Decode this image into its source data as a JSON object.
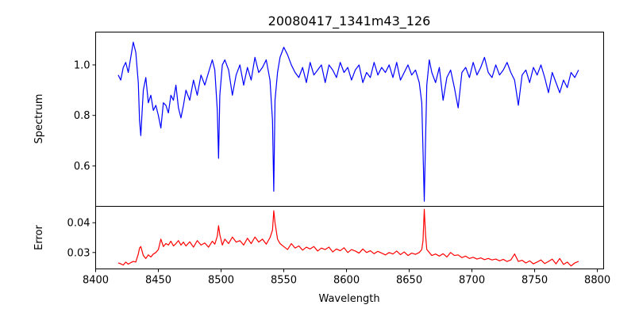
{
  "chart_data": [
    {
      "type": "line",
      "title": "20080417_1341m43_126",
      "ylabel": "Spectrum",
      "xlabel": "",
      "xlim": [
        8400,
        8805
      ],
      "ylim": [
        0.44,
        1.13
      ],
      "yticks": [
        0.6,
        0.8,
        1.0
      ],
      "ytick_labels": [
        "0.6",
        "0.8",
        "1.0"
      ],
      "grid": false,
      "series": [
        {
          "color": "#0000ff",
          "x": [
            8418,
            8420,
            8422,
            8424,
            8426,
            8428,
            8430,
            8432,
            8434,
            8435,
            8436,
            8438,
            8440,
            8442,
            8444,
            8446,
            8448,
            8450,
            8452,
            8454,
            8456,
            8458,
            8460,
            8462,
            8464,
            8466,
            8468,
            8470,
            8472,
            8475,
            8478,
            8481,
            8484,
            8487,
            8490,
            8493,
            8495,
            8497,
            8498,
            8499,
            8501,
            8503,
            8506,
            8509,
            8512,
            8515,
            8518,
            8521,
            8524,
            8527,
            8530,
            8533,
            8536,
            8539,
            8541,
            8542,
            8543,
            8545,
            8547,
            8550,
            8553,
            8556,
            8559,
            8562,
            8565,
            8568,
            8571,
            8574,
            8577,
            8580,
            8583,
            8586,
            8589,
            8592,
            8595,
            8598,
            8601,
            8604,
            8607,
            8610,
            8613,
            8616,
            8619,
            8622,
            8625,
            8628,
            8631,
            8634,
            8637,
            8640,
            8643,
            8646,
            8649,
            8652,
            8655,
            8658,
            8660,
            8661,
            8662,
            8663,
            8664,
            8666,
            8668,
            8671,
            8674,
            8677,
            8680,
            8683,
            8686,
            8689,
            8692,
            8695,
            8698,
            8701,
            8704,
            8707,
            8710,
            8713,
            8716,
            8719,
            8722,
            8725,
            8728,
            8731,
            8734,
            8737,
            8740,
            8743,
            8746,
            8749,
            8752,
            8755,
            8758,
            8761,
            8764,
            8767,
            8770,
            8773,
            8776,
            8779,
            8782,
            8785
          ],
          "y": [
            0.96,
            0.94,
            0.99,
            1.01,
            0.97,
            1.03,
            1.09,
            1.05,
            0.93,
            0.78,
            0.72,
            0.9,
            0.95,
            0.85,
            0.88,
            0.82,
            0.84,
            0.8,
            0.75,
            0.85,
            0.84,
            0.81,
            0.88,
            0.86,
            0.92,
            0.83,
            0.79,
            0.84,
            0.9,
            0.86,
            0.94,
            0.88,
            0.96,
            0.92,
            0.97,
            1.02,
            0.98,
            0.82,
            0.63,
            0.88,
            1.0,
            1.02,
            0.98,
            0.88,
            0.96,
            1.0,
            0.92,
            0.99,
            0.94,
            1.03,
            0.97,
            0.99,
            1.02,
            0.94,
            0.78,
            0.5,
            0.86,
            0.97,
            1.03,
            1.07,
            1.04,
            1.0,
            0.97,
            0.95,
            0.99,
            0.93,
            1.01,
            0.96,
            0.98,
            1.0,
            0.93,
            1.0,
            0.98,
            0.95,
            1.01,
            0.97,
            0.99,
            0.94,
            0.98,
            1.0,
            0.93,
            0.97,
            0.95,
            1.01,
            0.96,
            0.99,
            0.97,
            1.0,
            0.95,
            1.01,
            0.94,
            0.97,
            1.0,
            0.96,
            0.98,
            0.93,
            0.85,
            0.66,
            0.46,
            0.7,
            0.92,
            1.02,
            0.97,
            0.93,
            0.99,
            0.86,
            0.95,
            0.98,
            0.91,
            0.83,
            0.97,
            0.99,
            0.95,
            1.01,
            0.96,
            0.99,
            1.03,
            0.97,
            0.95,
            1.0,
            0.96,
            0.98,
            1.01,
            0.97,
            0.94,
            0.84,
            0.96,
            0.98,
            0.93,
            0.99,
            0.96,
            1.0,
            0.95,
            0.89,
            0.97,
            0.93,
            0.89,
            0.94,
            0.91,
            0.97,
            0.95,
            0.98
          ]
        }
      ]
    },
    {
      "type": "line",
      "title": "",
      "ylabel": "Error",
      "xlabel": "Wavelength",
      "xlim": [
        8400,
        8805
      ],
      "ylim": [
        0.0245,
        0.0455
      ],
      "yticks": [
        0.03,
        0.04
      ],
      "ytick_labels": [
        "0.03",
        "0.04"
      ],
      "xticks": [
        8400,
        8450,
        8500,
        8550,
        8600,
        8650,
        8700,
        8750,
        8800
      ],
      "xtick_labels": [
        "8400",
        "8450",
        "8500",
        "8550",
        "8600",
        "8650",
        "8700",
        "8750",
        "8800"
      ],
      "grid": false,
      "series": [
        {
          "color": "#ff0000",
          "x": [
            8418,
            8420,
            8422,
            8424,
            8426,
            8428,
            8430,
            8432,
            8434,
            8435,
            8436,
            8438,
            8440,
            8442,
            8444,
            8446,
            8448,
            8450,
            8452,
            8454,
            8456,
            8458,
            8460,
            8462,
            8464,
            8466,
            8468,
            8470,
            8472,
            8475,
            8478,
            8481,
            8484,
            8487,
            8490,
            8493,
            8495,
            8497,
            8498,
            8499,
            8501,
            8503,
            8506,
            8509,
            8512,
            8515,
            8518,
            8521,
            8524,
            8527,
            8530,
            8533,
            8536,
            8539,
            8541,
            8542,
            8543,
            8545,
            8547,
            8550,
            8553,
            8556,
            8559,
            8562,
            8565,
            8568,
            8571,
            8574,
            8577,
            8580,
            8583,
            8586,
            8589,
            8592,
            8595,
            8598,
            8601,
            8604,
            8607,
            8610,
            8613,
            8616,
            8619,
            8622,
            8625,
            8628,
            8631,
            8634,
            8637,
            8640,
            8643,
            8646,
            8649,
            8652,
            8655,
            8658,
            8660,
            8661,
            8662,
            8663,
            8664,
            8666,
            8668,
            8671,
            8674,
            8677,
            8680,
            8683,
            8686,
            8689,
            8692,
            8695,
            8698,
            8701,
            8704,
            8707,
            8710,
            8713,
            8716,
            8719,
            8722,
            8725,
            8728,
            8731,
            8734,
            8737,
            8740,
            8743,
            8746,
            8749,
            8752,
            8755,
            8758,
            8761,
            8764,
            8767,
            8770,
            8773,
            8776,
            8779,
            8782,
            8785
          ],
          "y": [
            0.0265,
            0.0262,
            0.0258,
            0.0268,
            0.0261,
            0.0266,
            0.027,
            0.0268,
            0.0295,
            0.0315,
            0.032,
            0.029,
            0.028,
            0.0292,
            0.0285,
            0.0295,
            0.03,
            0.031,
            0.0345,
            0.032,
            0.033,
            0.0325,
            0.0338,
            0.0322,
            0.033,
            0.034,
            0.0325,
            0.0335,
            0.0322,
            0.0336,
            0.0318,
            0.034,
            0.0325,
            0.0332,
            0.0318,
            0.0338,
            0.0328,
            0.0355,
            0.039,
            0.036,
            0.0325,
            0.0345,
            0.033,
            0.0352,
            0.0335,
            0.034,
            0.0325,
            0.0348,
            0.033,
            0.0352,
            0.0335,
            0.0345,
            0.0328,
            0.035,
            0.0375,
            0.044,
            0.04,
            0.0345,
            0.033,
            0.032,
            0.031,
            0.033,
            0.0315,
            0.0322,
            0.0308,
            0.0318,
            0.0312,
            0.032,
            0.0305,
            0.0315,
            0.031,
            0.0318,
            0.0302,
            0.0312,
            0.0306,
            0.0316,
            0.03,
            0.031,
            0.0305,
            0.0298,
            0.0312,
            0.03,
            0.0306,
            0.0296,
            0.0304,
            0.0298,
            0.0292,
            0.03,
            0.0295,
            0.0305,
            0.0293,
            0.0302,
            0.029,
            0.0298,
            0.0294,
            0.03,
            0.031,
            0.034,
            0.0445,
            0.036,
            0.031,
            0.03,
            0.029,
            0.0295,
            0.0288,
            0.0296,
            0.0285,
            0.03,
            0.029,
            0.0292,
            0.0283,
            0.0288,
            0.028,
            0.0284,
            0.0278,
            0.0282,
            0.0276,
            0.028,
            0.0275,
            0.0278,
            0.0272,
            0.0277,
            0.027,
            0.0275,
            0.0295,
            0.027,
            0.0274,
            0.0265,
            0.0272,
            0.0262,
            0.0268,
            0.0275,
            0.0263,
            0.027,
            0.0278,
            0.0262,
            0.028,
            0.026,
            0.0268,
            0.0255,
            0.0265,
            0.027
          ]
        }
      ]
    }
  ]
}
